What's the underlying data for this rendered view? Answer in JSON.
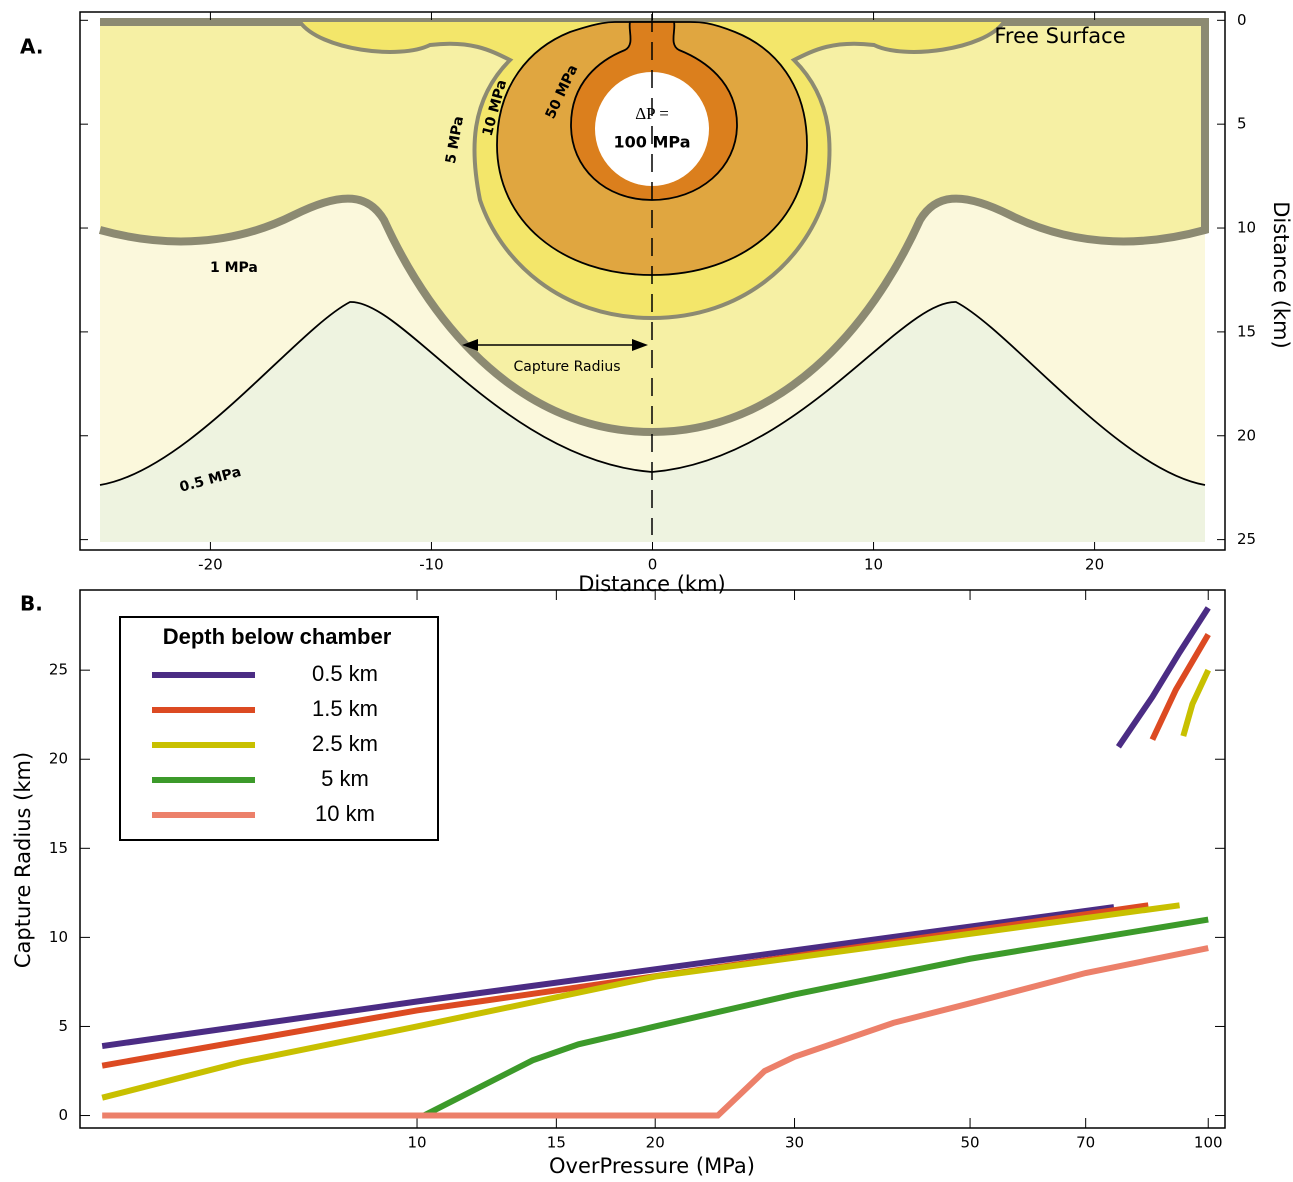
{
  "chart_data": [
    {
      "type": "contour",
      "panel_label": "A.",
      "xlabel": "Distance (km)",
      "ylabel": "Distance (km)",
      "xlim": [
        -25.9,
        25.9
      ],
      "xticks": [
        -20,
        -10,
        0,
        10,
        20
      ],
      "ylim": [
        -0.4,
        25.5
      ],
      "yticks": [
        0,
        5,
        10,
        15,
        20,
        25
      ],
      "y_inverted": true,
      "annotations": [
        "Free Surface",
        "Capture Radius"
      ],
      "contour_labels": [
        "0.5 MPa",
        "1 MPa",
        "5 MPa",
        "10 MPa",
        "50 MPa"
      ],
      "source_label": [
        "ΔP =",
        "100 MPa"
      ]
    },
    {
      "type": "line",
      "panel_label": "B.",
      "xlabel": "OverPressure (MPa)",
      "ylabel": "Capture Radius (km)",
      "xscale": "log",
      "xlim": [
        3.75,
        105
      ],
      "xticks": [
        10,
        15,
        20,
        30,
        50,
        70,
        100
      ],
      "ylim": [
        -0.7,
        29.5
      ],
      "yticks": [
        0,
        5,
        10,
        15,
        20,
        25
      ],
      "legend_title": "Depth below chamber",
      "legend_loc": "upper left",
      "series": [
        {
          "name": "0.5 km",
          "color": "#4b2c84",
          "x": [
            4,
            10,
            76,
            76.5,
            77,
            85,
            92,
            100
          ],
          "values": [
            3.9,
            6.4,
            11.7,
            null,
            20.7,
            23.5,
            26,
            28.5
          ]
        },
        {
          "name": "1.5 km",
          "color": "#dc4a22",
          "x": [
            4,
            10,
            84,
            84.5,
            85,
            91,
            100
          ],
          "values": [
            2.8,
            5.9,
            11.8,
            null,
            21.1,
            23.9,
            27.0
          ]
        },
        {
          "name": "2.5 km",
          "color": "#c8c000",
          "x": [
            4,
            6,
            10,
            20,
            92,
            92.5,
            93,
            95.5,
            100
          ],
          "values": [
            1.0,
            3.0,
            5.0,
            7.8,
            11.8,
            null,
            21.3,
            23.1,
            25.0
          ]
        },
        {
          "name": "5 km",
          "color": "#3c9a2a",
          "x": [
            10.2,
            14,
            16,
            20,
            30,
            50,
            100
          ],
          "values": [
            0,
            3.1,
            4.0,
            5.0,
            6.8,
            8.8,
            11.0
          ]
        },
        {
          "name": "10 km",
          "color": "#ec806a",
          "x": [
            4,
            24,
            27.5,
            30,
            40,
            50,
            70,
            100
          ],
          "values": [
            0,
            0,
            2.5,
            3.3,
            5.2,
            6.3,
            8.0,
            9.4
          ]
        }
      ]
    }
  ]
}
